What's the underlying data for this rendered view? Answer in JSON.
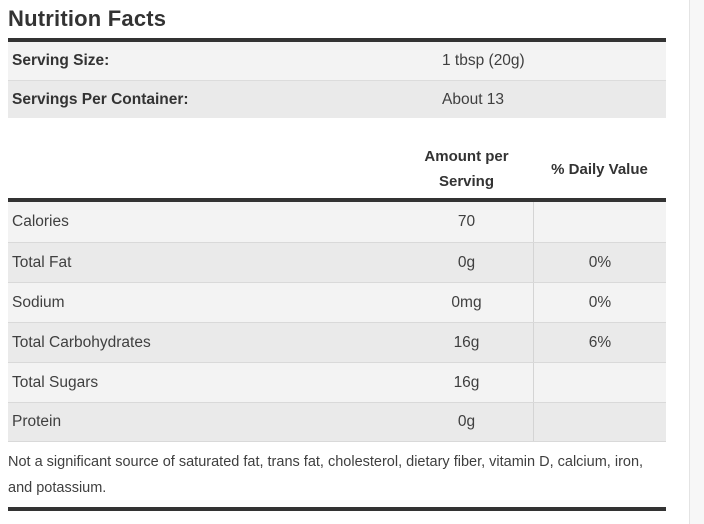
{
  "title": "Nutrition Facts",
  "serving_info": {
    "rows": [
      {
        "label": "Serving Size:",
        "value": "1 tbsp (20g)"
      },
      {
        "label": "Servings Per Container:",
        "value": "About 13"
      }
    ]
  },
  "columns": {
    "amount_header": "Amount per Serving",
    "daily_header": "% Daily Value"
  },
  "nutrients": [
    {
      "name": "Calories",
      "amount": "70",
      "daily": ""
    },
    {
      "name": "Total Fat",
      "amount": "0g",
      "daily": "0%"
    },
    {
      "name": "Sodium",
      "amount": "0mg",
      "daily": "0%"
    },
    {
      "name": "Total Carbohydrates",
      "amount": "16g",
      "daily": "6%"
    },
    {
      "name": "Total Sugars",
      "amount": "16g",
      "daily": ""
    },
    {
      "name": "Protein",
      "amount": "0g",
      "daily": ""
    }
  ],
  "footnote": "Not a significant source of saturated fat, trans fat, cholesterol, dietary fiber, vitamin D, calcium, iron, and potassium.",
  "colors": {
    "rule": "#333333",
    "row_light": "#f3f3f3",
    "row_dark": "#eaeaea",
    "separator": "#d9d9d9",
    "text": "#3f3f3f"
  }
}
